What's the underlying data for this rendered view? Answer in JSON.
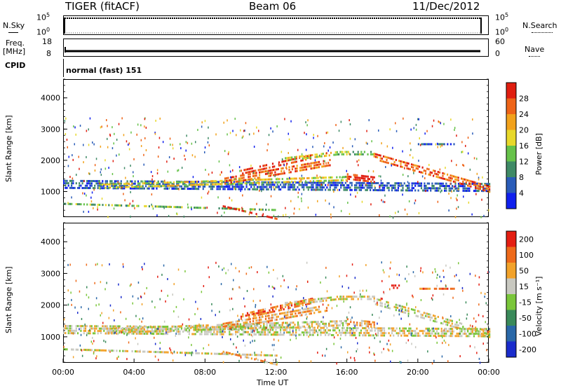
{
  "header": {
    "station": "TIGER (fitACF)",
    "beam": "Beam 06",
    "date": "11/Dec/2012"
  },
  "panels": {
    "nsky": {
      "label": "N.Sky",
      "ticks": [
        "10^5",
        "10^0"
      ],
      "right_label": "N.Search",
      "right_ticks": [
        "10^5",
        "10^0"
      ]
    },
    "freq": {
      "label_line1": "Freq.",
      "label_line2": "[MHz]",
      "ticks": [
        "18",
        "8"
      ],
      "right_label": "Nave",
      "right_ticks": [
        "60",
        "0"
      ]
    },
    "cpid": {
      "label": "CPID",
      "text": "normal (fast) 151"
    }
  },
  "chart_data": [
    {
      "type": "heatmap",
      "name": "power",
      "ylabel": "Slant Range [km]",
      "xlabel": "Time UT",
      "ylim": [
        180,
        4600
      ],
      "yticks": [
        1000,
        2000,
        3000,
        4000
      ],
      "xlim": [
        0,
        24
      ],
      "xticks": [
        "00:00",
        "04:00",
        "08:00",
        "12:00",
        "16:00",
        "20:00",
        "00:00"
      ],
      "colorbar": {
        "label": "Power [dB]",
        "ticks": [
          "4",
          "8",
          "12",
          "16",
          "20",
          "24",
          "28"
        ],
        "colors": [
          "#1020ee",
          "#2a5cb8",
          "#3f8a66",
          "#66c24a",
          "#e8d82a",
          "#f2a21c",
          "#ee6418",
          "#e01e10"
        ]
      },
      "bands": [
        {
          "t0": 0.0,
          "t1": 24.0,
          "r_start": 1300,
          "r_end": 1200,
          "width": 300,
          "level": 1
        },
        {
          "t0": 2.0,
          "t1": 16.0,
          "r_start": 1250,
          "r_end": 1500,
          "width": 200,
          "level": 4
        },
        {
          "t0": 9.0,
          "t1": 15.0,
          "r_start": 1400,
          "r_end": 2000,
          "width": 250,
          "level": 6
        },
        {
          "t0": 10.0,
          "t1": 14.0,
          "r_start": 1700,
          "r_end": 2200,
          "width": 200,
          "level": 7
        },
        {
          "t0": 12.5,
          "t1": 15.5,
          "r_start": 2100,
          "r_end": 2300,
          "width": 150,
          "level": 4
        },
        {
          "t0": 15.5,
          "t1": 17.5,
          "r_start": 2300,
          "r_end": 2300,
          "width": 150,
          "level": 3
        },
        {
          "t0": 16.0,
          "t1": 17.5,
          "r_start": 1550,
          "r_end": 1450,
          "width": 220,
          "level": 7
        },
        {
          "t0": 17.5,
          "t1": 24.0,
          "r_start": 2200,
          "r_end": 1150,
          "width": 250,
          "level": 6
        },
        {
          "t0": 20.0,
          "t1": 22.0,
          "r_start": 2600,
          "r_end": 2600,
          "width": 100,
          "level": 1
        },
        {
          "t0": 0.0,
          "t1": 12.0,
          "r_start": 700,
          "r_end": 500,
          "width": 120,
          "level": 3
        },
        {
          "t0": 9.0,
          "t1": 12.0,
          "r_start": 600,
          "r_end": 200,
          "width": 80,
          "level": 7
        }
      ]
    },
    {
      "type": "heatmap",
      "name": "velocity",
      "ylabel": "Slant Range [km]",
      "xlabel": "Time UT",
      "ylim": [
        180,
        4600
      ],
      "yticks": [
        1000,
        2000,
        3000,
        4000
      ],
      "xlim": [
        0,
        24
      ],
      "xticks": [
        "00:00",
        "04:00",
        "08:00",
        "12:00",
        "16:00",
        "20:00",
        "00:00"
      ],
      "colorbar": {
        "label": "Velocity [m s⁻¹]",
        "ticks": [
          "200",
          "100",
          "50",
          "15",
          "-15",
          "-50",
          "-100",
          "-200"
        ],
        "colors": [
          "#1a2ccc",
          "#2a68a8",
          "#3a8a5a",
          "#7ac63a",
          "#c8c8c0",
          "#f2a22a",
          "#ee6a1a",
          "#e41e12"
        ]
      },
      "bands": [
        {
          "t0": 0.0,
          "t1": 24.0,
          "r_start": 1300,
          "r_end": 1200,
          "width": 300,
          "level": 4
        },
        {
          "t0": 2.0,
          "t1": 16.0,
          "r_start": 1250,
          "r_end": 1500,
          "width": 200,
          "level": 4
        },
        {
          "t0": 9.0,
          "t1": 15.0,
          "r_start": 1400,
          "r_end": 2000,
          "width": 250,
          "level": 5
        },
        {
          "t0": 10.0,
          "t1": 14.0,
          "r_start": 1700,
          "r_end": 2200,
          "width": 200,
          "level": 6
        },
        {
          "t0": 12.5,
          "t1": 15.5,
          "r_start": 2100,
          "r_end": 2300,
          "width": 150,
          "level": 4
        },
        {
          "t0": 15.5,
          "t1": 17.5,
          "r_start": 2300,
          "r_end": 2300,
          "width": 150,
          "level": 4
        },
        {
          "t0": 16.0,
          "t1": 17.5,
          "r_start": 1550,
          "r_end": 1450,
          "width": 220,
          "level": 5
        },
        {
          "t0": 17.5,
          "t1": 24.0,
          "r_start": 2200,
          "r_end": 1150,
          "width": 250,
          "level": 4
        },
        {
          "t0": 18.5,
          "t1": 19.0,
          "r_start": 2650,
          "r_end": 2650,
          "width": 150,
          "level": 7
        },
        {
          "t0": 20.0,
          "t1": 22.0,
          "r_start": 2600,
          "r_end": 2600,
          "width": 100,
          "level": 6
        },
        {
          "t0": 0.0,
          "t1": 12.0,
          "r_start": 700,
          "r_end": 500,
          "width": 120,
          "level": 4
        },
        {
          "t0": 9.0,
          "t1": 12.0,
          "r_start": 600,
          "r_end": 200,
          "width": 80,
          "level": 5
        }
      ]
    }
  ]
}
